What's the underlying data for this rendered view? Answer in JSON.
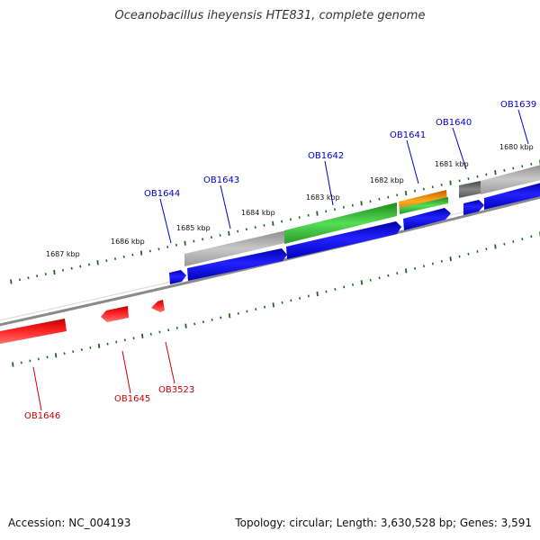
{
  "title": "Oceanobacillus iheyensis HTE831, complete genome",
  "footer": {
    "accession": "Accession: NC_004193",
    "summary": "Topology: circular; Length: 3,630,528 bp; Genes: 3,591"
  },
  "colors": {
    "forward_label": "#0000cc",
    "reverse_label": "#cc0000",
    "forward_cds": "#0000ee",
    "reverse_cds": "#ee0000",
    "gene": "#b4b4b4",
    "gene_dark": "#777777",
    "highlight_green": "#33bb33",
    "highlight_orange": "#ee8800",
    "backbone": "#888888",
    "ticks": "#226622"
  },
  "scale": {
    "unit": "kbp",
    "labels": [
      "1680 kbp",
      "1681 kbp",
      "1682 kbp",
      "1683 kbp",
      "1684 kbp",
      "1685 kbp",
      "1686 kbp",
      "1687 kbp"
    ]
  },
  "genes": {
    "forward": [
      "OB1639",
      "OB1640",
      "OB1641",
      "OB1642",
      "OB1643",
      "OB1644"
    ],
    "reverse": [
      "OB1645",
      "OB3523",
      "OB1646"
    ]
  }
}
